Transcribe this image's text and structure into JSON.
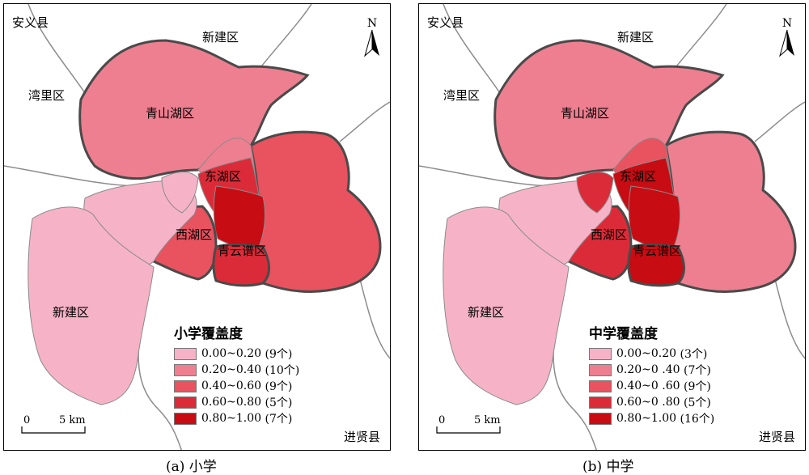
{
  "colors": {
    "class1": "#f6b3c8",
    "class2": "#ee7f90",
    "class3": "#e9525f",
    "class4": "#dc2b38",
    "class5": "#c80c13",
    "river": "#8c8c8c",
    "boundary": "#4a4a4a"
  },
  "north_arrow": {
    "label": "N"
  },
  "scale_bar": {
    "zero": "0",
    "distance": "5 km"
  },
  "panels": [
    {
      "caption": "(a) 小学",
      "legend_title": "小学覆盖度",
      "legend": [
        {
          "range": "0.00~0.20",
          "count": "(9个)"
        },
        {
          "range": "0.20~0.40",
          "count": "(10个)"
        },
        {
          "range": "0.40~0.60",
          "count": "(9个)"
        },
        {
          "range": "0.60~0.80",
          "count": "(5个)"
        },
        {
          "range": "0.80~1.00",
          "count": "(7个)"
        }
      ],
      "district_labels": {
        "anyi": "安义县",
        "xinjian_n": "新建区",
        "wanli": "湾里区",
        "qingshanhu": "青山湖区",
        "donghu": "东湖区",
        "xihu": "西湖区",
        "qingyunpu": "青云谱区",
        "xinjian_sw": "新建区",
        "jinxian": "进贤县"
      }
    },
    {
      "caption": "(b) 中学",
      "legend_title": "中学覆盖度",
      "legend": [
        {
          "range": "0.00~0.20",
          "count": "(3个)"
        },
        {
          "range": "0.20~0 .40",
          "count": "(7个)"
        },
        {
          "range": "0.40~0 .60",
          "count": "(9个)"
        },
        {
          "range": "0.60~0 .80",
          "count": "(5个)"
        },
        {
          "range": "0.80~1.00",
          "count": "(16个)"
        }
      ],
      "district_labels": {
        "anyi": "安义县",
        "xinjian_n": "新建区",
        "wanli": "湾里区",
        "qingshanhu": "青山湖区",
        "donghu": "东湖区",
        "xihu": "西湖区",
        "qingyunpu": "青云谱区",
        "xinjian_sw": "新建区",
        "jinxian": "进贤县"
      }
    }
  ]
}
